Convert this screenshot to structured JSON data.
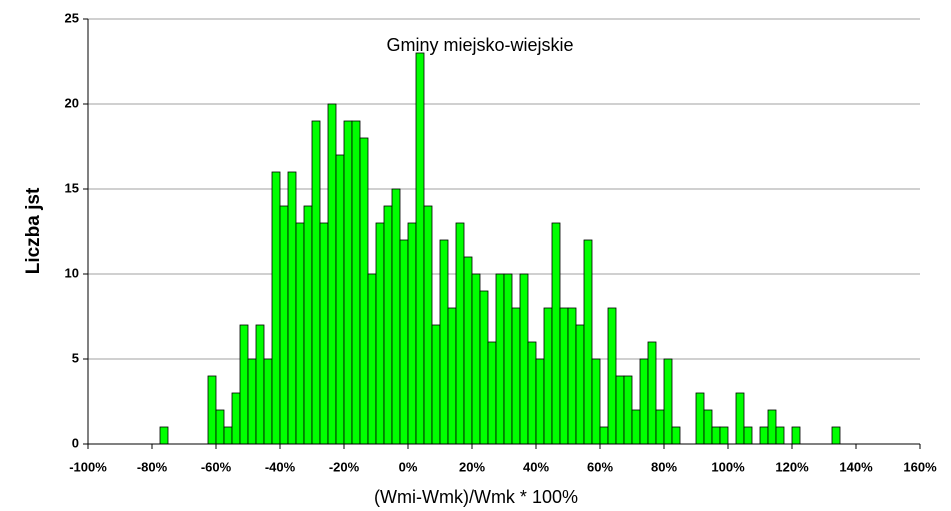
{
  "chart_data": {
    "type": "histogram",
    "title": "Gminy miejsko-wiejskie",
    "xlabel": "(Wmi-Wmk)/Wmk * 100%",
    "ylabel": "Liczba jst",
    "bins": [
      -100,
      -97.5,
      -95,
      -92.5,
      -90,
      -87.5,
      -85,
      -82.5,
      -80,
      -77.5,
      -75,
      -72.5,
      -70,
      -67.5,
      -65,
      -62.5,
      -60,
      -57.5,
      -55,
      -52.5,
      -50,
      -47.5,
      -45,
      -42.5,
      -40,
      -37.5,
      -35,
      -32.5,
      -30,
      -27.5,
      -25,
      -22.5,
      -20,
      -17.5,
      -15,
      -12.5,
      -10,
      -7.5,
      -5,
      -2.5,
      0,
      2.5,
      5,
      7.5,
      10,
      12.5,
      15,
      17.5,
      20,
      22.5,
      25,
      27.5,
      30,
      32.5,
      35,
      37.5,
      40,
      42.5,
      45,
      47.5,
      50,
      52.5,
      55,
      57.5,
      60,
      62.5,
      65,
      67.5,
      70,
      72.5,
      75,
      77.5,
      80,
      82.5,
      85,
      87.5,
      90,
      92.5,
      95,
      97.5,
      100,
      102.5,
      105,
      107.5,
      110,
      112.5,
      115,
      117.5,
      120,
      122.5,
      125,
      127.5,
      130,
      132.5,
      135,
      137.5,
      140,
      142.5,
      145,
      147.5,
      150,
      152.5,
      155,
      157.5,
      160
    ],
    "values": [
      0,
      0,
      0,
      0,
      0,
      0,
      0,
      0,
      0,
      1,
      0,
      0,
      0,
      0,
      0,
      4,
      2,
      1,
      3,
      7,
      5,
      7,
      5,
      16,
      14,
      16,
      13,
      14,
      19,
      13,
      20,
      17,
      19,
      19,
      18,
      10,
      13,
      14,
      15,
      12,
      13,
      23,
      14,
      7,
      12,
      8,
      13,
      11,
      10,
      9,
      6,
      10,
      10,
      8,
      10,
      6,
      5,
      8,
      13,
      8,
      8,
      7,
      12,
      5,
      1,
      8,
      4,
      4,
      2,
      5,
      6,
      2,
      5,
      1,
      0,
      0,
      3,
      2,
      1,
      1,
      0,
      3,
      1,
      0,
      1,
      2,
      1,
      0,
      1,
      0,
      0,
      0,
      0,
      1,
      0,
      0,
      0,
      0,
      0,
      0,
      0,
      0,
      0,
      0
    ],
    "color": "#00ff00",
    "xlim": [
      -100,
      160
    ],
    "xticks": [
      {
        "value": -100,
        "label": "-100%"
      },
      {
        "value": -80,
        "label": "-80%"
      },
      {
        "value": -60,
        "label": "-60%"
      },
      {
        "value": -40,
        "label": "-40%"
      },
      {
        "value": -20,
        "label": "-20%"
      },
      {
        "value": 0,
        "label": "0%"
      },
      {
        "value": 20,
        "label": "20%"
      },
      {
        "value": 40,
        "label": "40%"
      },
      {
        "value": 60,
        "label": "60%"
      },
      {
        "value": 80,
        "label": "80%"
      },
      {
        "value": 100,
        "label": "100%"
      },
      {
        "value": 120,
        "label": "120%"
      },
      {
        "value": 140,
        "label": "140%"
      },
      {
        "value": 160,
        "label": "160%"
      }
    ],
    "ylim": [
      0,
      25
    ],
    "yticks": [
      0,
      5,
      10,
      15,
      20,
      25
    ],
    "grid": true
  }
}
